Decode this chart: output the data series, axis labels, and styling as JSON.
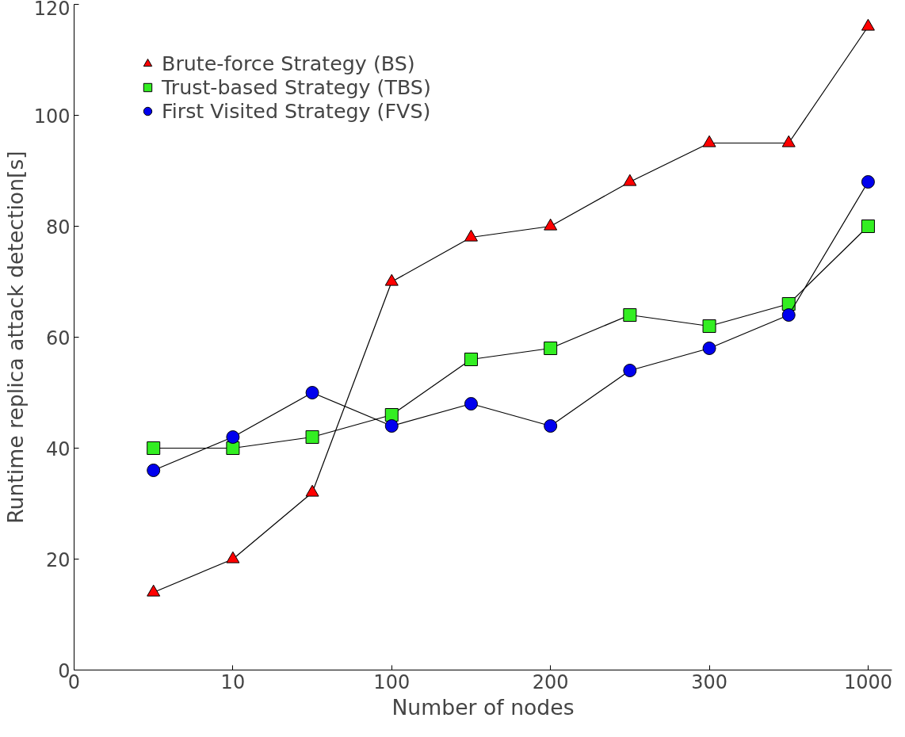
{
  "chart_data": {
    "type": "line",
    "xlabel": "Number of nodes",
    "ylabel": "Runtime replica attack detection[s]",
    "categories": [
      null,
      "10",
      null,
      "100",
      null,
      "200",
      null,
      "300",
      null,
      "1000"
    ],
    "annotations": [
      "0"
    ],
    "ylim": [
      0,
      120
    ],
    "yticks": [
      0,
      20,
      40,
      60,
      80,
      100,
      120
    ],
    "grid": false,
    "legend": "top left",
    "series": [
      {
        "name": "Brute-force Strategy (BS)",
        "color": "#ff0000",
        "marker": "triangle",
        "values": [
          14,
          20,
          32,
          70,
          78,
          80,
          88,
          95,
          95,
          116
        ]
      },
      {
        "name": "Trust-based Strategy (TBS)",
        "color": "#33ee22",
        "marker": "square",
        "values": [
          40,
          40,
          42,
          46,
          56,
          58,
          64,
          62,
          66,
          80
        ]
      },
      {
        "name": "First Visited Strategy (FVS)",
        "color": "#0000ee",
        "marker": "circle",
        "values": [
          36,
          42,
          50,
          44,
          48,
          44,
          54,
          58,
          64,
          88
        ]
      }
    ]
  }
}
